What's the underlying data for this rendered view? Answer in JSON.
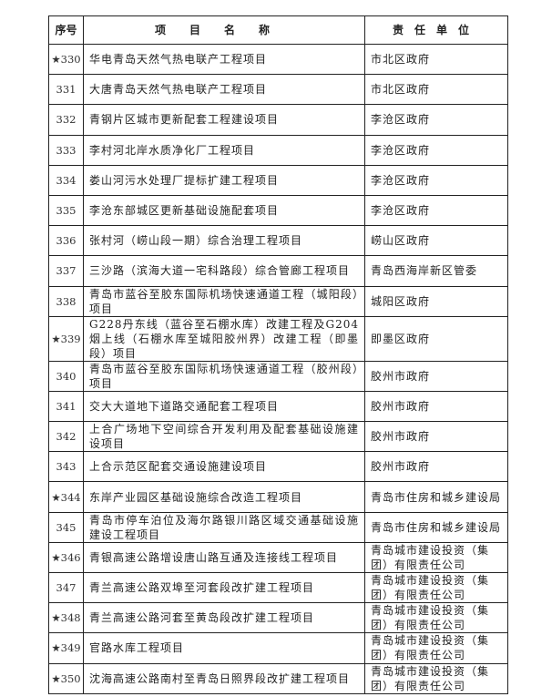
{
  "table": {
    "headers": [
      "序号",
      "项目名称",
      "责任单位"
    ],
    "rows": [
      {
        "no": "★330",
        "name": "华电青岛天然气热电联产工程项目",
        "unit": "市北区政府"
      },
      {
        "no": "331",
        "name": "大唐青岛天然气热电联产工程项目",
        "unit": "市北区政府"
      },
      {
        "no": "332",
        "name": "青钢片区城市更新配套工程建设项目",
        "unit": "李沧区政府"
      },
      {
        "no": "333",
        "name": "李村河北岸水质净化厂工程项目",
        "unit": "李沧区政府"
      },
      {
        "no": "334",
        "name": "娄山河污水处理厂提标扩建工程项目",
        "unit": "李沧区政府"
      },
      {
        "no": "335",
        "name": "李沧东部城区更新基础设施配套项目",
        "unit": "李沧区政府"
      },
      {
        "no": "336",
        "name": "张村河（崂山段一期）综合治理工程项目",
        "unit": "崂山区政府"
      },
      {
        "no": "337",
        "name": "三沙路（滨海大道一宅科路段）综合管廊工程项目",
        "unit": "青岛西海岸新区管委"
      },
      {
        "no": "338",
        "name": "青岛市蓝谷至胶东国际机场快速通道工程（城阳段）项目",
        "unit": "城阳区政府"
      },
      {
        "no": "★339",
        "name": "G228丹东线（蓝谷至石棚水库）改建工程及G204烟上线（石棚水库至城阳胶州界）改建工程（即墨段）项目",
        "unit": "即墨区政府"
      },
      {
        "no": "340",
        "name": "青岛市蓝谷至胶东国际机场快速通道工程（胶州段）项目",
        "unit": "胶州市政府"
      },
      {
        "no": "341",
        "name": "交大大道地下道路交通配套工程项目",
        "unit": "胶州市政府"
      },
      {
        "no": "342",
        "name": "上合广场地下空间综合开发利用及配套基础设施建设项目",
        "unit": "胶州市政府"
      },
      {
        "no": "343",
        "name": "上合示范区配套交通设施建设项目",
        "unit": "胶州市政府"
      },
      {
        "no": "★344",
        "name": "东岸产业园区基础设施综合改造工程项目",
        "unit": "青岛市住房和城乡建设局"
      },
      {
        "no": "345",
        "name": "青岛市停车泊位及海尔路银川路区域交通基础设施建设工程项目",
        "unit": "青岛市住房和城乡建设局"
      },
      {
        "no": "★346",
        "name": "青银高速公路增设唐山路互通及连接线工程项目",
        "unit": "青岛城市建设投资（集团）有限责任公司"
      },
      {
        "no": "347",
        "name": "青兰高速公路双埠至河套段改扩建工程项目",
        "unit": "青岛城市建设投资（集团）有限责任公司"
      },
      {
        "no": "★348",
        "name": "青兰高速公路河套至黄岛段改扩建工程项目",
        "unit": "青岛城市建设投资（集团）有限责任公司"
      },
      {
        "no": "★349",
        "name": "官路水库工程项目",
        "unit": "青岛城市建设投资（集团）有限责任公司"
      },
      {
        "no": "★350",
        "name": "沈海高速公路南村至青岛日照界段改扩建工程项目",
        "unit": "青岛城市建设投资（集团）有限责任公司"
      }
    ]
  }
}
